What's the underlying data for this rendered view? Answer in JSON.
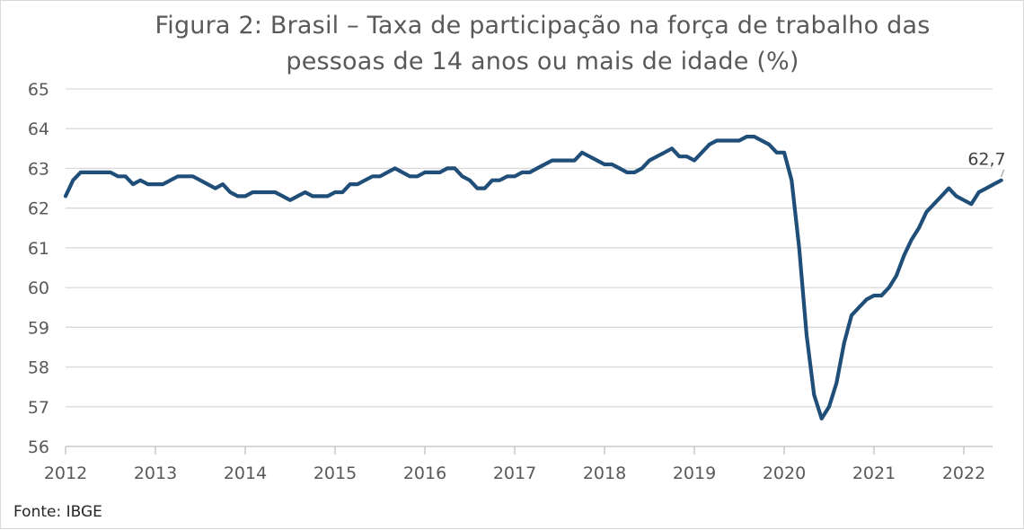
{
  "chart_data": {
    "type": "line",
    "title_lines": [
      "Figura 2: Brasil – Taxa de participação na força de trabalho das",
      "pessoas de 14 anos ou mais de idade (%)"
    ],
    "source": "Fonte: IBGE",
    "ylim": [
      56,
      65
    ],
    "y_ticks": [
      "56",
      "57",
      "58",
      "59",
      "60",
      "61",
      "62",
      "63",
      "64",
      "65"
    ],
    "x_ticks": [
      "2012",
      "2013",
      "2014",
      "2015",
      "2016",
      "2017",
      "2018",
      "2019",
      "2020",
      "2021",
      "2022"
    ],
    "grid": true,
    "line_color": "#1f4e79",
    "last_value_label": "62,7",
    "series": [
      {
        "start": "2012-03",
        "frequency": "monthly",
        "values": [
          62.3,
          62.7,
          62.9,
          62.9,
          62.9,
          62.9,
          62.9,
          62.8,
          62.8,
          62.6,
          62.7,
          62.6,
          62.6,
          62.6,
          62.7,
          62.8,
          62.8,
          62.8,
          62.7,
          62.6,
          62.5,
          62.6,
          62.4,
          62.3,
          62.3,
          62.4,
          62.4,
          62.4,
          62.4,
          62.3,
          62.2,
          62.3,
          62.4,
          62.3,
          62.3,
          62.3,
          62.4,
          62.4,
          62.6,
          62.6,
          62.7,
          62.8,
          62.8,
          62.9,
          63.0,
          62.9,
          62.8,
          62.8,
          62.9,
          62.9,
          62.9,
          63.0,
          63.0,
          62.8,
          62.7,
          62.5,
          62.5,
          62.7,
          62.7,
          62.8,
          62.8,
          62.9,
          62.9,
          63.0,
          63.1,
          63.2,
          63.2,
          63.2,
          63.2,
          63.4,
          63.3,
          63.2,
          63.1,
          63.1,
          63.0,
          62.9,
          62.9,
          63.0,
          63.2,
          63.3,
          63.4,
          63.5,
          63.3,
          63.3,
          63.2,
          63.4,
          63.6,
          63.7,
          63.7,
          63.7,
          63.7,
          63.8,
          63.8,
          63.7,
          63.6,
          63.4,
          63.4,
          62.7,
          61.0,
          58.8,
          57.3,
          56.7,
          57.0,
          57.6,
          58.6,
          59.3,
          59.5,
          59.7,
          59.8,
          59.8,
          60.0,
          60.3,
          60.8,
          61.2,
          61.5,
          61.9,
          62.1,
          62.3,
          62.5,
          62.3,
          62.2,
          62.1,
          62.4,
          62.5,
          62.6,
          62.7
        ]
      }
    ]
  }
}
